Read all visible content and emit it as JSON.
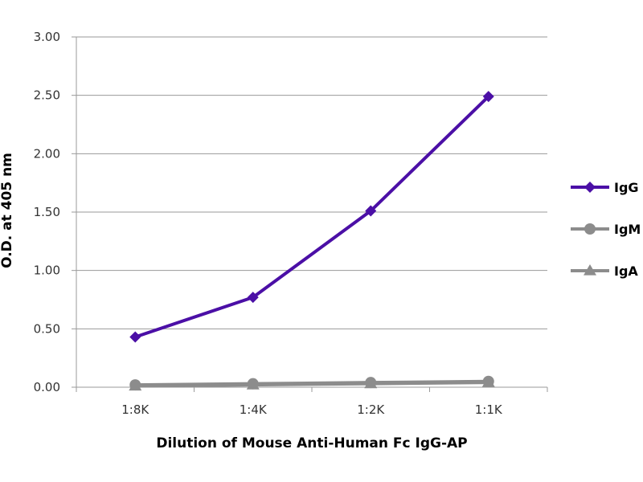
{
  "chart_data": {
    "type": "line",
    "title": "",
    "xlabel": "Dilution of Mouse Anti-Human Fc IgG-AP",
    "ylabel": "O.D. at 405 nm",
    "categories": [
      "1:8K",
      "1:4K",
      "1:2K",
      "1:1K"
    ],
    "ylim": [
      0,
      3
    ],
    "yticks": [
      "0.00",
      "0.50",
      "1.00",
      "1.50",
      "2.00",
      "2.50",
      "3.00"
    ],
    "grid": true,
    "legend_position": "right",
    "series": [
      {
        "name": "IgG",
        "values": [
          0.43,
          0.77,
          1.51,
          2.49
        ],
        "color": "#4b0fa6",
        "marker": "diamond"
      },
      {
        "name": "IgM",
        "values": [
          0.02,
          0.03,
          0.04,
          0.05
        ],
        "color": "#8c8c8c",
        "marker": "circle"
      },
      {
        "name": "IgA",
        "values": [
          0.01,
          0.02,
          0.03,
          0.04
        ],
        "color": "#8c8c8c",
        "marker": "triangle"
      }
    ]
  }
}
